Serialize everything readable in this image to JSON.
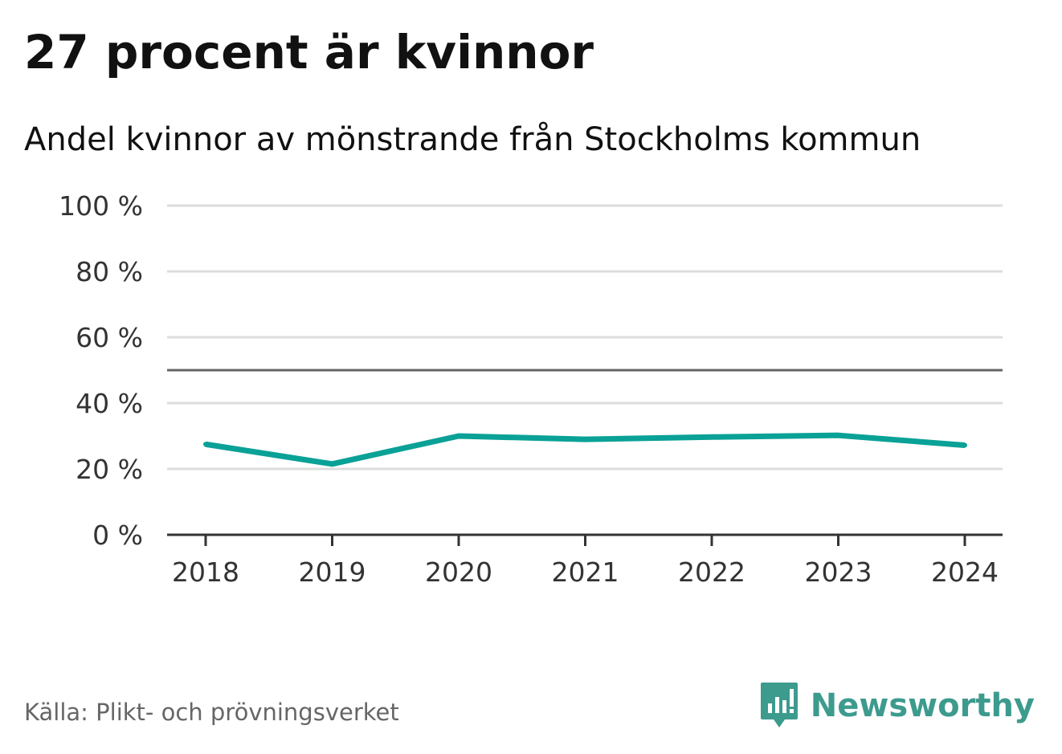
{
  "header": {
    "title": "27 procent är kvinnor",
    "subtitle": "Andel kvinnor av mönstrande från Stockholms kommun"
  },
  "footer": {
    "source": "Källa: Plikt- och prövningsverket",
    "brand": "Newsworthy"
  },
  "colors": {
    "line": "#0aa197",
    "grid": "#dddddd",
    "reference": "#666666",
    "axis": "#333333",
    "brand": "#3d9b8e"
  },
  "chart_data": {
    "type": "line",
    "title": "27 procent är kvinnor",
    "subtitle": "Andel kvinnor av mönstrande från Stockholms kommun",
    "xlabel": "",
    "ylabel": "",
    "x": [
      "2018",
      "2019",
      "2020",
      "2021",
      "2022",
      "2023",
      "2024"
    ],
    "series": [
      {
        "name": "Andel kvinnor",
        "values": [
          27.5,
          21.5,
          30.0,
          29.0,
          29.7,
          30.2,
          27.2
        ]
      }
    ],
    "ylim": [
      0,
      100
    ],
    "yticks": [
      0,
      20,
      40,
      60,
      80,
      100
    ],
    "ytick_labels": [
      "0 %",
      "20 %",
      "40 %",
      "60 %",
      "80 %",
      "100 %"
    ],
    "reference_line": 50,
    "grid": true
  }
}
